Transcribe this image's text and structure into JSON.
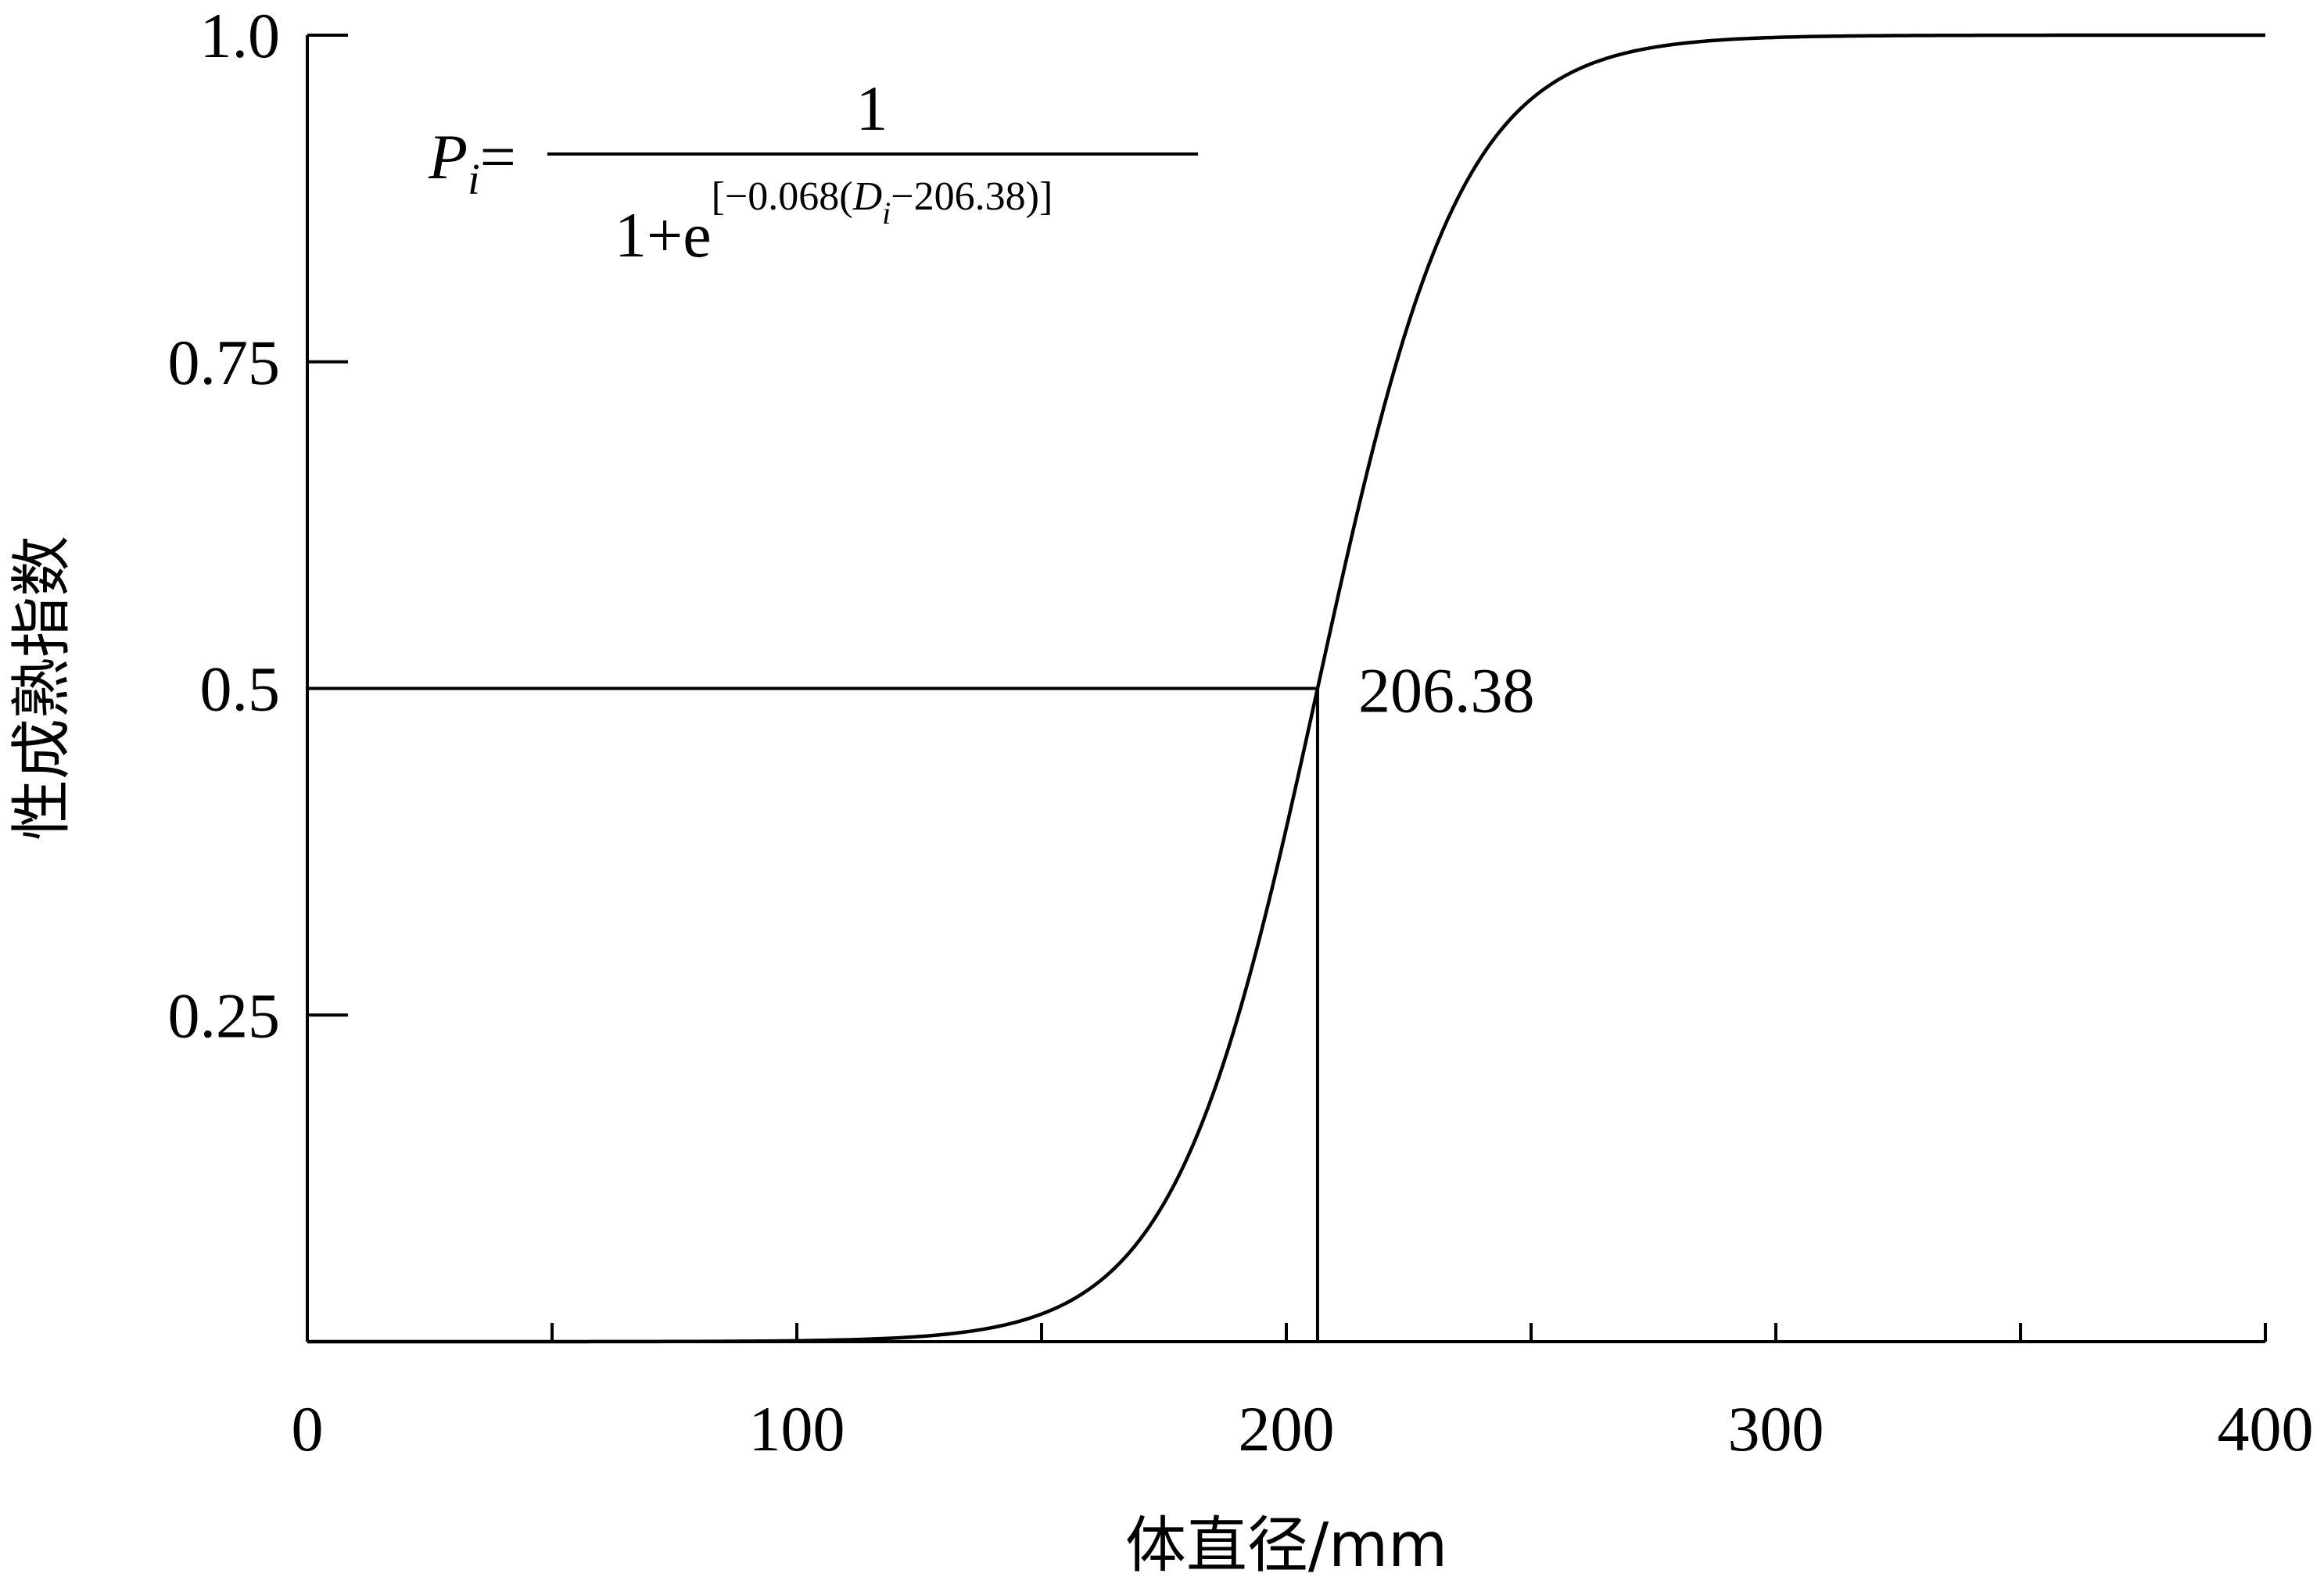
{
  "chart_data": {
    "type": "line",
    "xlabel": "体直径/mm",
    "ylabel": "性成熟指数",
    "xlim": [
      0,
      400
    ],
    "ylim": [
      0,
      1.0
    ],
    "x_ticks": [
      0,
      100,
      200,
      300,
      400
    ],
    "x_tick_labels": [
      "0",
      "100",
      "200",
      "300",
      "400"
    ],
    "x_minor_ticks": [
      50,
      150,
      250,
      350
    ],
    "y_ticks": [
      0.25,
      0.5,
      0.75,
      1.0
    ],
    "y_tick_labels": [
      "0.25",
      "0.5",
      "0.75",
      "1.0"
    ],
    "grid": false,
    "series": [
      {
        "model": "logistic",
        "slope": 0.068,
        "midpoint": 206.38,
        "x_start": 0,
        "x_end": 400
      }
    ],
    "reference_lines": {
      "horizontal_y": 0.5,
      "vertical_x": 206.38
    },
    "annotation": {
      "label": "206.38",
      "x": 206.38,
      "y": 0.5
    },
    "formula": {
      "lhs_var": "P",
      "lhs_sub": "i",
      "equals": "=",
      "numerator": "1",
      "denom_base": "1+e",
      "exp_prefix": "[−0.068(",
      "exp_var": "D",
      "exp_sub": "i",
      "exp_suffix": "−206.38)]"
    }
  }
}
